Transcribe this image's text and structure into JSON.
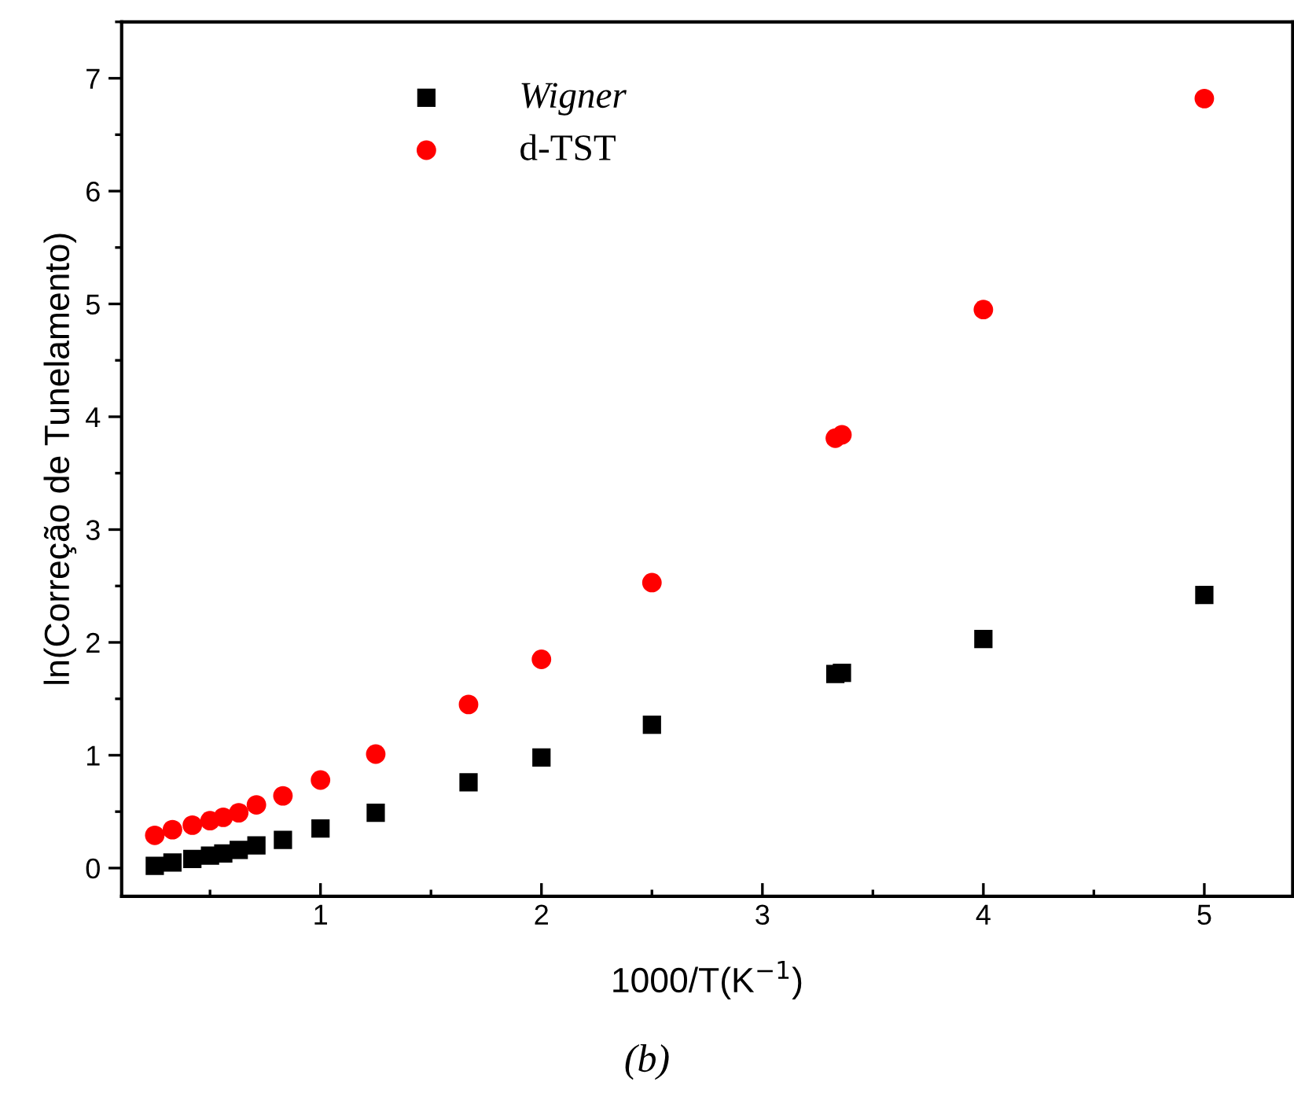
{
  "chart_data": {
    "type": "scatter",
    "xlabel": "1000/T(K$^{−1}$)",
    "ylabel": "ln(Correção de Tunelamento)",
    "annotations": [
      "(b)"
    ],
    "xlim": [
      0.1,
      5.4
    ],
    "ylim": [
      -0.25,
      7.5
    ],
    "xticks": [
      1,
      2,
      3,
      4,
      5
    ],
    "yticks": [
      0,
      1,
      2,
      3,
      4,
      5,
      6,
      7
    ],
    "grid": false,
    "legend": "top left",
    "series": [
      {
        "name": "Wigner",
        "color": "#000000",
        "marker": "square",
        "x": [
          5,
          4,
          3.36,
          3.33,
          2.5,
          2,
          1.67,
          1.25,
          1,
          0.83,
          0.71,
          0.63,
          0.56,
          0.5,
          0.42,
          0.33,
          0.25
        ],
        "values": [
          2.42,
          2.03,
          1.73,
          1.72,
          1.27,
          0.98,
          0.76,
          0.49,
          0.35,
          0.25,
          0.2,
          0.16,
          0.13,
          0.11,
          0.08,
          0.05,
          0.02
        ]
      },
      {
        "name": "d-TST",
        "color": "#ff0000",
        "marker": "circle",
        "x": [
          5,
          4,
          3.36,
          3.33,
          2.5,
          2,
          1.67,
          1.25,
          1,
          0.83,
          0.71,
          0.63,
          0.56,
          0.5,
          0.42,
          0.33,
          0.25
        ],
        "values": [
          6.82,
          4.95,
          3.84,
          3.81,
          2.53,
          1.85,
          1.45,
          1.01,
          0.78,
          0.64,
          0.56,
          0.49,
          0.45,
          0.42,
          0.38,
          0.34,
          0.29
        ]
      }
    ]
  }
}
